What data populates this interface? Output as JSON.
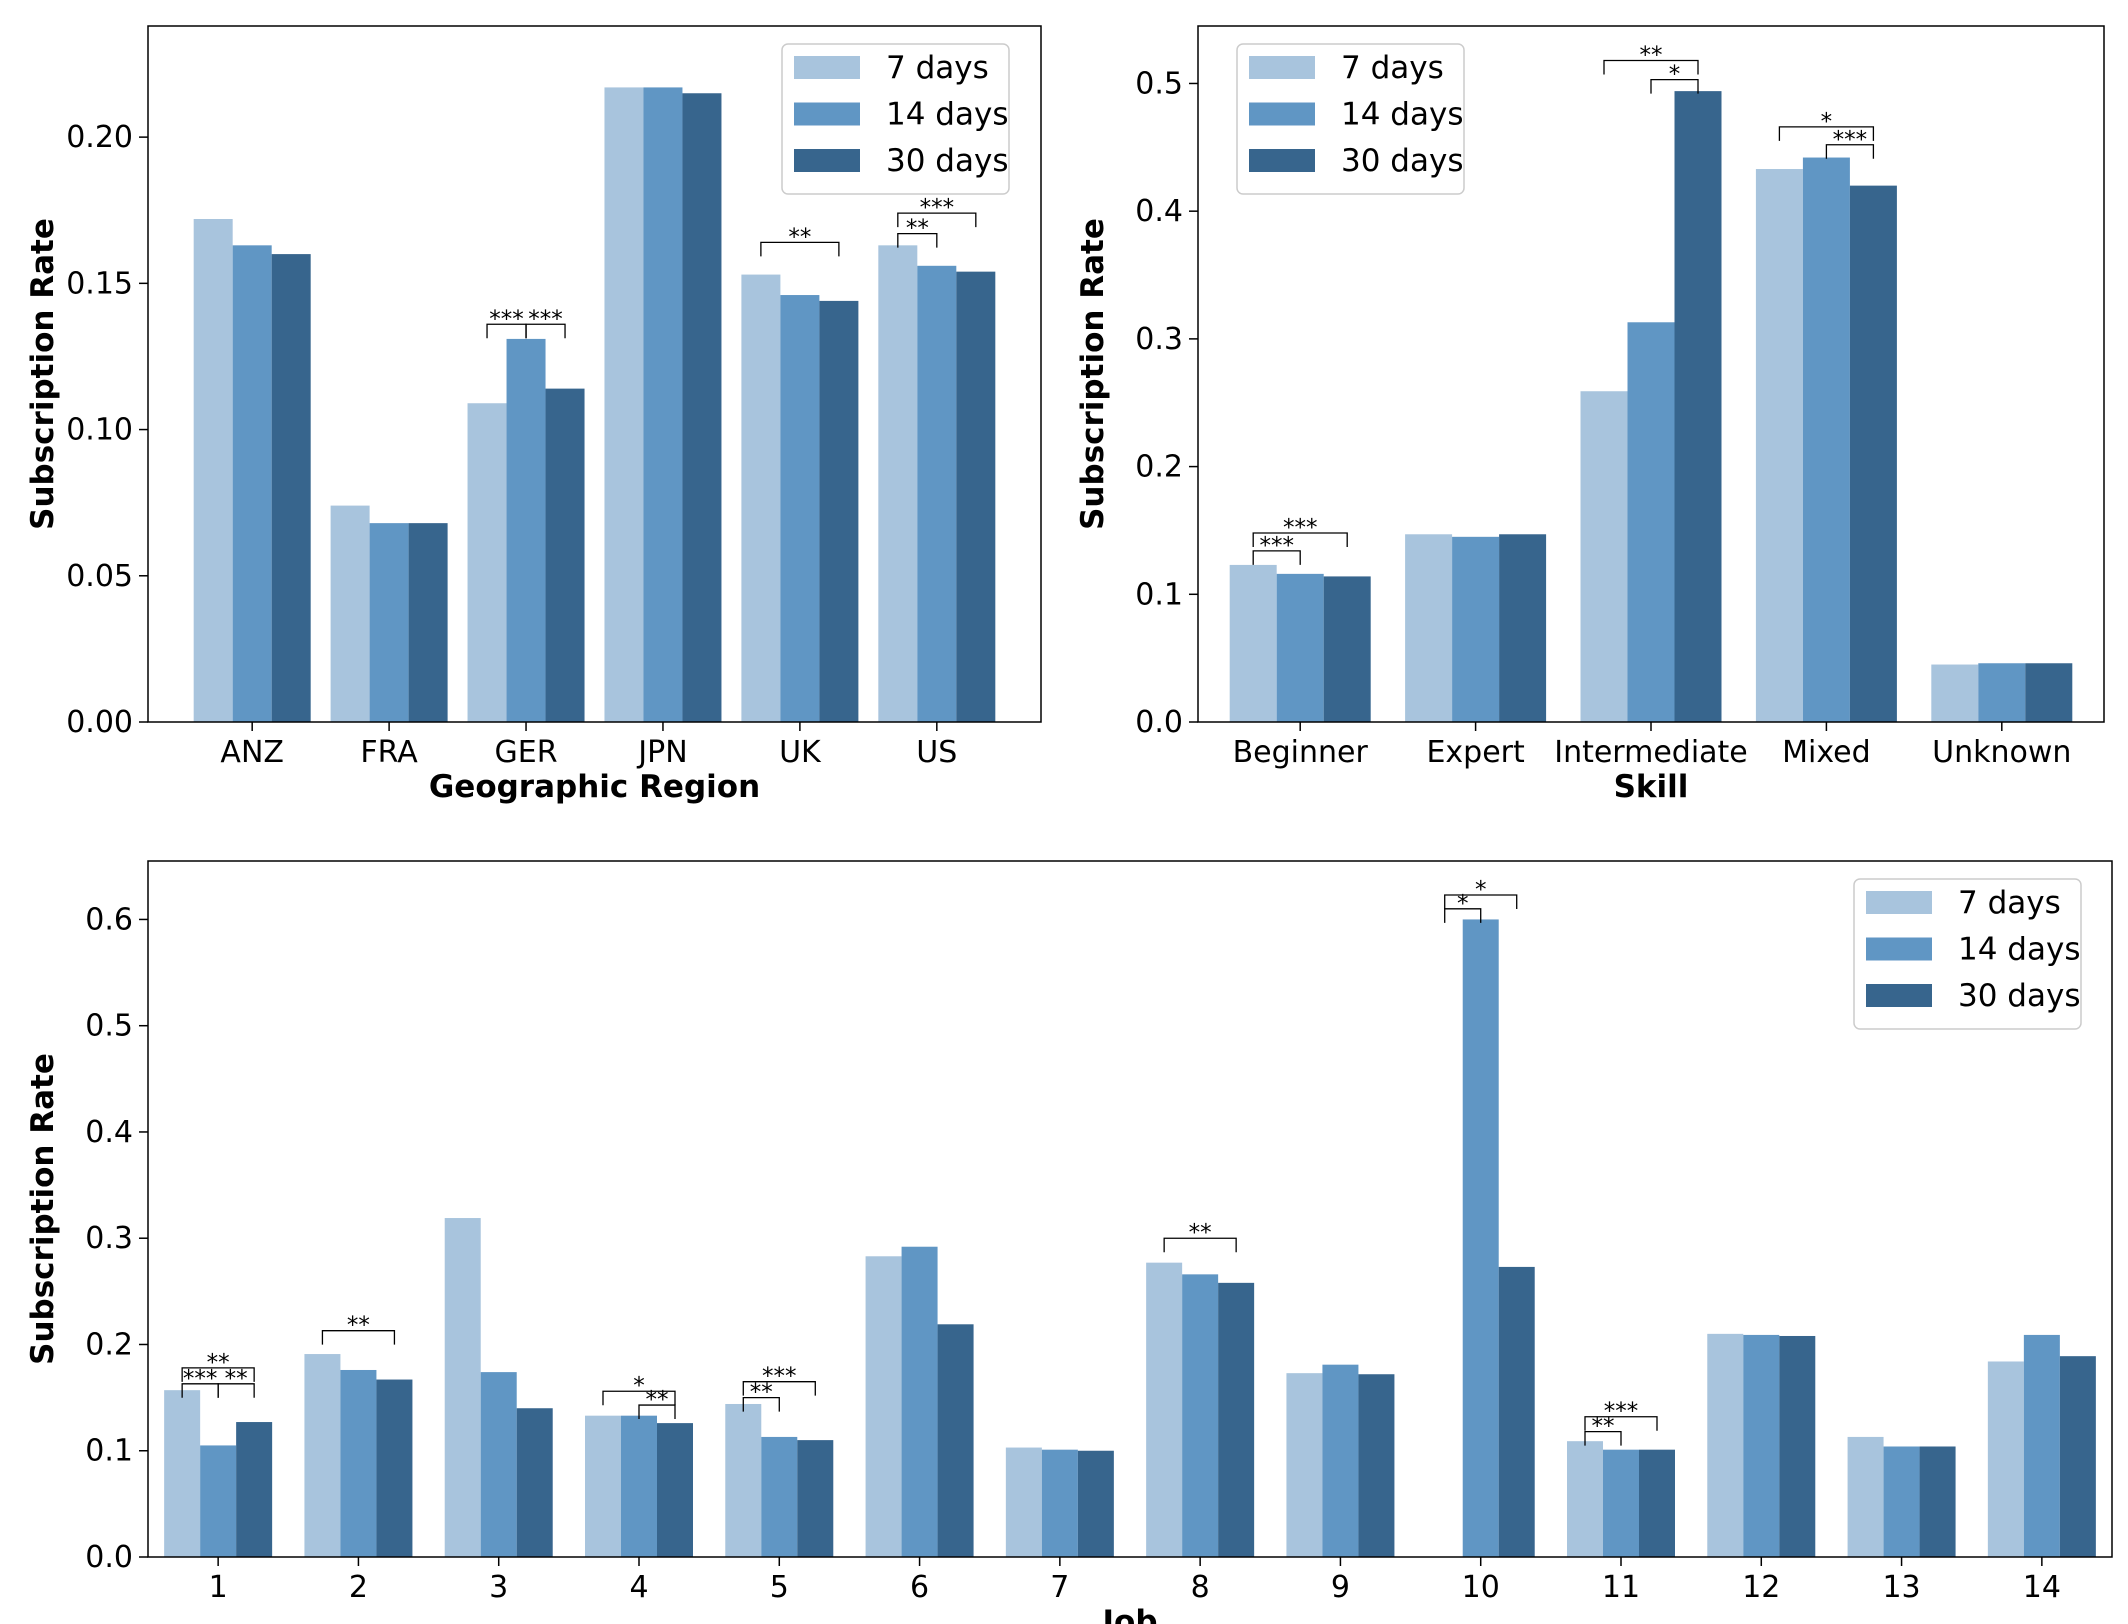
{
  "colors": {
    "series": [
      "#a8c4dd",
      "#6096c4",
      "#37658d"
    ],
    "axis": "#000000",
    "legend_border": "#cccccc"
  },
  "chart_data": [
    {
      "id": "region",
      "type": "bar",
      "xlabel": "Geographic Region",
      "ylabel": "Subscription Rate",
      "ylim": [
        0,
        0.238
      ],
      "yticks": [
        0.0,
        0.05,
        0.1,
        0.15,
        0.2
      ],
      "ytick_labels": [
        "0.00",
        "0.05",
        "0.10",
        "0.15",
        "0.20"
      ],
      "legend_position": "top-right",
      "categories": [
        "ANZ",
        "FRA",
        "GER",
        "JPN",
        "UK",
        "US"
      ],
      "series": [
        {
          "name": "7 days",
          "values": [
            0.172,
            0.074,
            0.109,
            0.217,
            0.153,
            0.163
          ]
        },
        {
          "name": "14 days",
          "values": [
            0.163,
            0.068,
            0.131,
            0.217,
            0.146,
            0.156
          ]
        },
        {
          "name": "30 days",
          "values": [
            0.16,
            0.068,
            0.114,
            0.215,
            0.144,
            0.154
          ]
        }
      ],
      "significance": [
        {
          "category": "GER",
          "from": 0,
          "to": 1,
          "label": "***",
          "level": 0.136
        },
        {
          "category": "GER",
          "from": 1,
          "to": 2,
          "label": "***",
          "level": 0.136
        },
        {
          "category": "UK",
          "from": 0,
          "to": 2,
          "label": "**",
          "level": 0.164
        },
        {
          "category": "US",
          "from": 0,
          "to": 1,
          "label": "**",
          "level": 0.167
        },
        {
          "category": "US",
          "from": 0,
          "to": 2,
          "label": "***",
          "level": 0.174
        }
      ]
    },
    {
      "id": "skill",
      "type": "bar",
      "xlabel": "Skill",
      "ylabel": "Subscription Rate",
      "ylim": [
        0,
        0.545
      ],
      "yticks": [
        0.0,
        0.1,
        0.2,
        0.3,
        0.4,
        0.5
      ],
      "ytick_labels": [
        "0.0",
        "0.1",
        "0.2",
        "0.3",
        "0.4",
        "0.5"
      ],
      "legend_position": "top-left",
      "categories": [
        "Beginner",
        "Expert",
        "Intermediate",
        "Mixed",
        "Unknown"
      ],
      "series": [
        {
          "name": "7 days",
          "values": [
            0.123,
            0.147,
            0.259,
            0.433,
            0.045
          ]
        },
        {
          "name": "14 days",
          "values": [
            0.116,
            0.145,
            0.313,
            0.442,
            0.046
          ]
        },
        {
          "name": "30 days",
          "values": [
            0.114,
            0.147,
            0.494,
            0.42,
            0.046
          ]
        }
      ],
      "significance": [
        {
          "category": "Beginner",
          "from": 0,
          "to": 1,
          "label": "***",
          "level": 0.134
        },
        {
          "category": "Beginner",
          "from": 0,
          "to": 2,
          "label": "***",
          "level": 0.148
        },
        {
          "category": "Intermediate",
          "from": 1,
          "to": 2,
          "label": "*",
          "level": 0.503
        },
        {
          "category": "Intermediate",
          "from": 0,
          "to": 2,
          "label": "**",
          "level": 0.518
        },
        {
          "category": "Mixed",
          "from": 1,
          "to": 2,
          "label": "***",
          "level": 0.452
        },
        {
          "category": "Mixed",
          "from": 0,
          "to": 2,
          "label": "*",
          "level": 0.466
        }
      ]
    },
    {
      "id": "job",
      "type": "bar",
      "xlabel": "Job",
      "ylabel": "Subscription Rate",
      "ylim": [
        0,
        0.655
      ],
      "yticks": [
        0.0,
        0.1,
        0.2,
        0.3,
        0.4,
        0.5,
        0.6
      ],
      "ytick_labels": [
        "0.0",
        "0.1",
        "0.2",
        "0.3",
        "0.4",
        "0.5",
        "0.6"
      ],
      "legend_position": "top-right",
      "categories": [
        "1",
        "2",
        "3",
        "4",
        "5",
        "6",
        "7",
        "8",
        "9",
        "10",
        "11",
        "12",
        "13",
        "14"
      ],
      "series": [
        {
          "name": "7 days",
          "values": [
            0.157,
            0.191,
            0.319,
            0.133,
            0.144,
            0.283,
            0.103,
            0.277,
            0.173,
            0.0,
            0.109,
            0.21,
            0.113,
            0.184
          ]
        },
        {
          "name": "14 days",
          "values": [
            0.105,
            0.176,
            0.174,
            0.133,
            0.113,
            0.292,
            0.101,
            0.266,
            0.181,
            0.6,
            0.101,
            0.209,
            0.104,
            0.209
          ]
        },
        {
          "name": "30 days",
          "values": [
            0.127,
            0.167,
            0.14,
            0.126,
            0.11,
            0.219,
            0.1,
            0.258,
            0.172,
            0.273,
            0.101,
            0.208,
            0.104,
            0.189
          ]
        }
      ],
      "significance": [
        {
          "category": "1",
          "from": 0,
          "to": 1,
          "label": "***",
          "level": 0.163
        },
        {
          "category": "1",
          "from": 1,
          "to": 2,
          "label": "**",
          "level": 0.163
        },
        {
          "category": "1",
          "from": 0,
          "to": 2,
          "label": "**",
          "level": 0.178
        },
        {
          "category": "2",
          "from": 0,
          "to": 2,
          "label": "**",
          "level": 0.213
        },
        {
          "category": "4",
          "from": 1,
          "to": 2,
          "label": "**",
          "level": 0.143
        },
        {
          "category": "4",
          "from": 0,
          "to": 2,
          "label": "*",
          "level": 0.156
        },
        {
          "category": "5",
          "from": 0,
          "to": 1,
          "label": "**",
          "level": 0.15
        },
        {
          "category": "5",
          "from": 0,
          "to": 2,
          "label": "***",
          "level": 0.165
        },
        {
          "category": "8",
          "from": 0,
          "to": 2,
          "label": "**",
          "level": 0.3
        },
        {
          "category": "10",
          "from": 0,
          "to": 1,
          "label": "*",
          "level": 0.61
        },
        {
          "category": "10",
          "from": 0,
          "to": 2,
          "label": "*",
          "level": 0.623
        },
        {
          "category": "11",
          "from": 0,
          "to": 1,
          "label": "**",
          "level": 0.118
        },
        {
          "category": "11",
          "from": 0,
          "to": 2,
          "label": "***",
          "level": 0.132
        }
      ]
    }
  ]
}
